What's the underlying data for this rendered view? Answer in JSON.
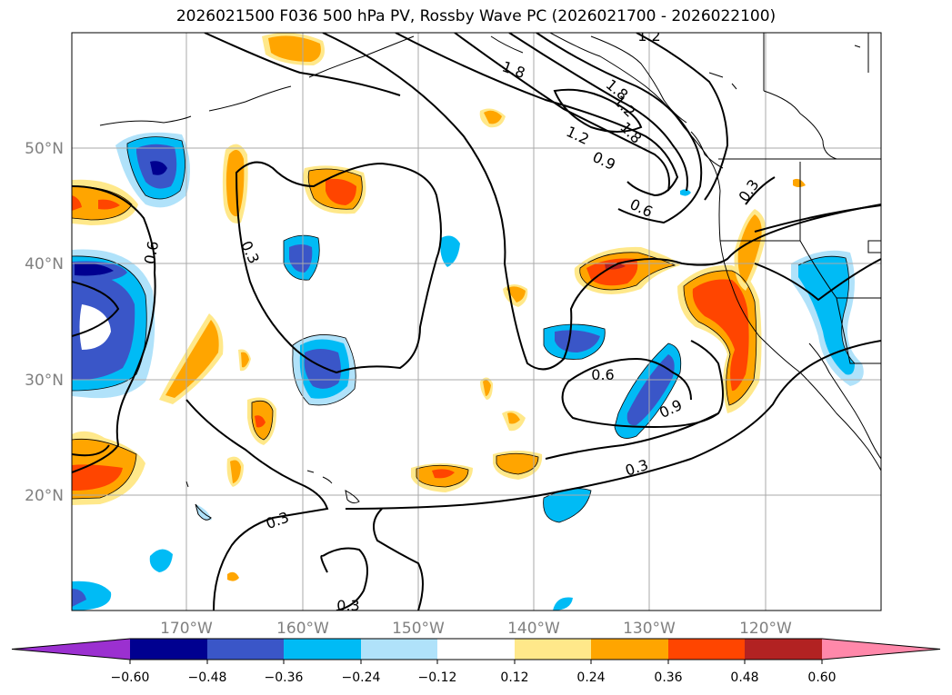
{
  "title": "2026021500 F036 500 hPa PV, Rossby Wave PC (2026021700 - 2026022100)",
  "latitude_labels": [
    "50°N",
    "40°N",
    "30°N",
    "20°N"
  ],
  "longitude_labels": [
    "170°W",
    "160°W",
    "150°W",
    "140°W",
    "130°W",
    "120°W"
  ],
  "contour_labels": [
    "1.2",
    "1.8",
    "1.8",
    "1.2",
    "1.8",
    "1.2",
    "0.9",
    "0.6",
    "0.3",
    "0.6",
    "0.3",
    "0.6",
    "0.9",
    "0.3",
    "0.3",
    "0.3"
  ],
  "colorbar": {
    "ticks": [
      "−0.60",
      "−0.48",
      "−0.36",
      "−0.24",
      "−0.12",
      "0.12",
      "0.24",
      "0.36",
      "0.48",
      "0.60"
    ],
    "colors": [
      "#9b30d0",
      "#000090",
      "#3a56c8",
      "#00bbf5",
      "#b0e2fa",
      "#ffffff",
      "#ffe88a",
      "#ffa500",
      "#ff4500",
      "#b22222",
      "#ff88aa"
    ]
  }
}
